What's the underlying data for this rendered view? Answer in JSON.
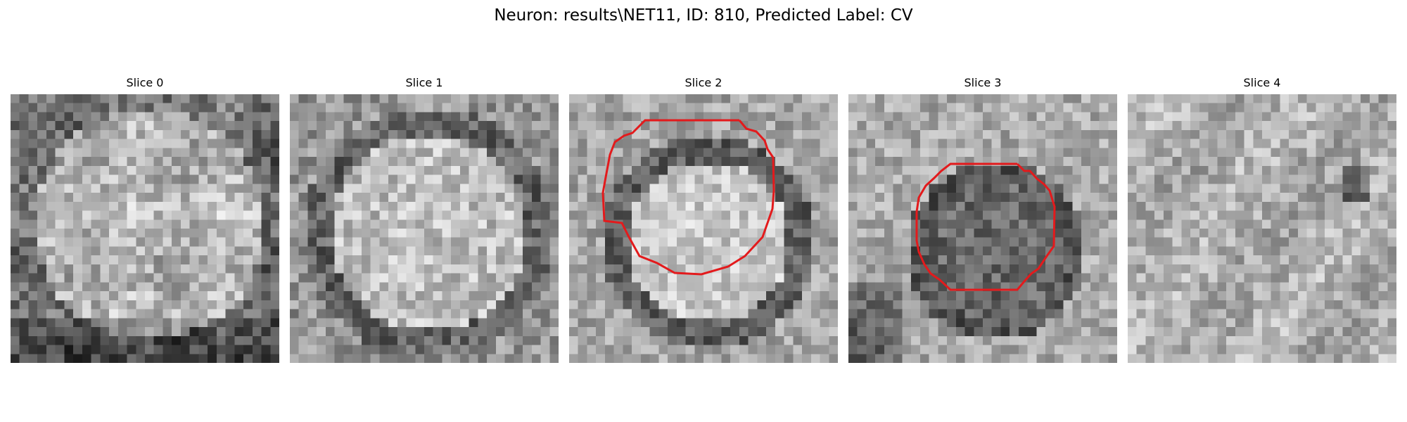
{
  "figure": {
    "title": "Neuron: results\\NET11, ID: 810, Predicted Label: CV"
  },
  "slices": [
    {
      "title": "Slice 0",
      "contour": false
    },
    {
      "title": "Slice 1",
      "contour": false
    },
    {
      "title": "Slice 2",
      "contour": true
    },
    {
      "title": "Slice 3",
      "contour": true
    },
    {
      "title": "Slice 4",
      "contour": false
    }
  ],
  "colors": {
    "contour": "#e31a1c",
    "background": "#ffffff"
  }
}
